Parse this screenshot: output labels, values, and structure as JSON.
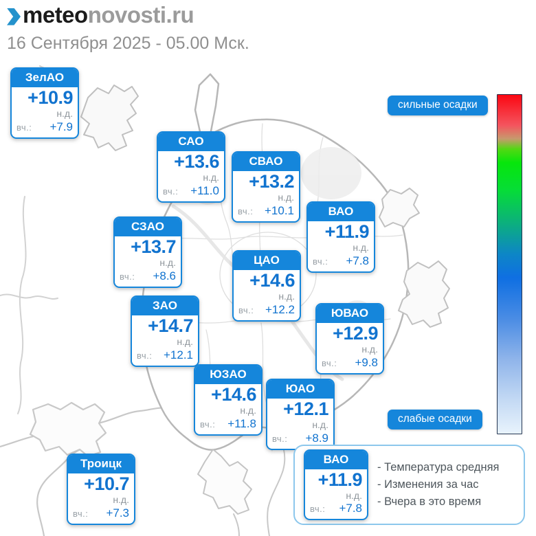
{
  "header": {
    "logo_part1": "meteo",
    "logo_part2": "novosti.ru",
    "logo_icon": "chevron-right-icon",
    "date_line": "16 Сентября 2025 - 05.00 Мск."
  },
  "scale": {
    "top_label": "сильные осадки",
    "bottom_label": "слабые осадки",
    "gradient_top_color": "#fb0712",
    "gradient_middle_colors": [
      "#07e60c",
      "#0f6fe2"
    ],
    "gradient_bottom_color": "#e8f3fc"
  },
  "cards": [
    {
      "district": "ЗелАО",
      "temp": "+10.9",
      "hour_change": "н.д.",
      "yesterday_label": "вч.:",
      "yesterday": "+7.9"
    },
    {
      "district": "САО",
      "temp": "+13.6",
      "hour_change": "н.д.",
      "yesterday_label": "вч.:",
      "yesterday": "+11.0"
    },
    {
      "district": "СВАО",
      "temp": "+13.2",
      "hour_change": "н.д.",
      "yesterday_label": "вч.:",
      "yesterday": "+10.1"
    },
    {
      "district": "ВАО",
      "temp": "+11.9",
      "hour_change": "н.д.",
      "yesterday_label": "вч.:",
      "yesterday": "+7.8"
    },
    {
      "district": "СЗАО",
      "temp": "+13.7",
      "hour_change": "н.д.",
      "yesterday_label": "вч.:",
      "yesterday": "+8.6"
    },
    {
      "district": "ЦАО",
      "temp": "+14.6",
      "hour_change": "н.д.",
      "yesterday_label": "вч.:",
      "yesterday": "+12.2"
    },
    {
      "district": "ЗАО",
      "temp": "+14.7",
      "hour_change": "н.д.",
      "yesterday_label": "вч.:",
      "yesterday": "+12.1"
    },
    {
      "district": "ЮВАО",
      "temp": "+12.9",
      "hour_change": "н.д.",
      "yesterday_label": "вч.:",
      "yesterday": "+9.8"
    },
    {
      "district": "ЮЗАО",
      "temp": "+14.6",
      "hour_change": "н.д.",
      "yesterday_label": "вч.:",
      "yesterday": "+11.8"
    },
    {
      "district": "ЮАО",
      "temp": "+12.1",
      "hour_change": "н.д.",
      "yesterday_label": "вч.:",
      "yesterday": "+8.9"
    },
    {
      "district": "Троицк",
      "temp": "+10.7",
      "hour_change": "н.д.",
      "yesterday_label": "вч.:",
      "yesterday": "+7.3"
    }
  ],
  "legend": {
    "sample": {
      "district": "ВАО",
      "temp": "+11.9",
      "hour_change": "н.д.",
      "yesterday_label": "вч.:",
      "yesterday": "+7.8"
    },
    "items": [
      "- Температура средняя",
      "- Изменения за час",
      "- Вчера в это время"
    ]
  },
  "colors": {
    "accent": "#1586db",
    "value_text": "#1173cf",
    "muted_text": "#8e959b"
  }
}
